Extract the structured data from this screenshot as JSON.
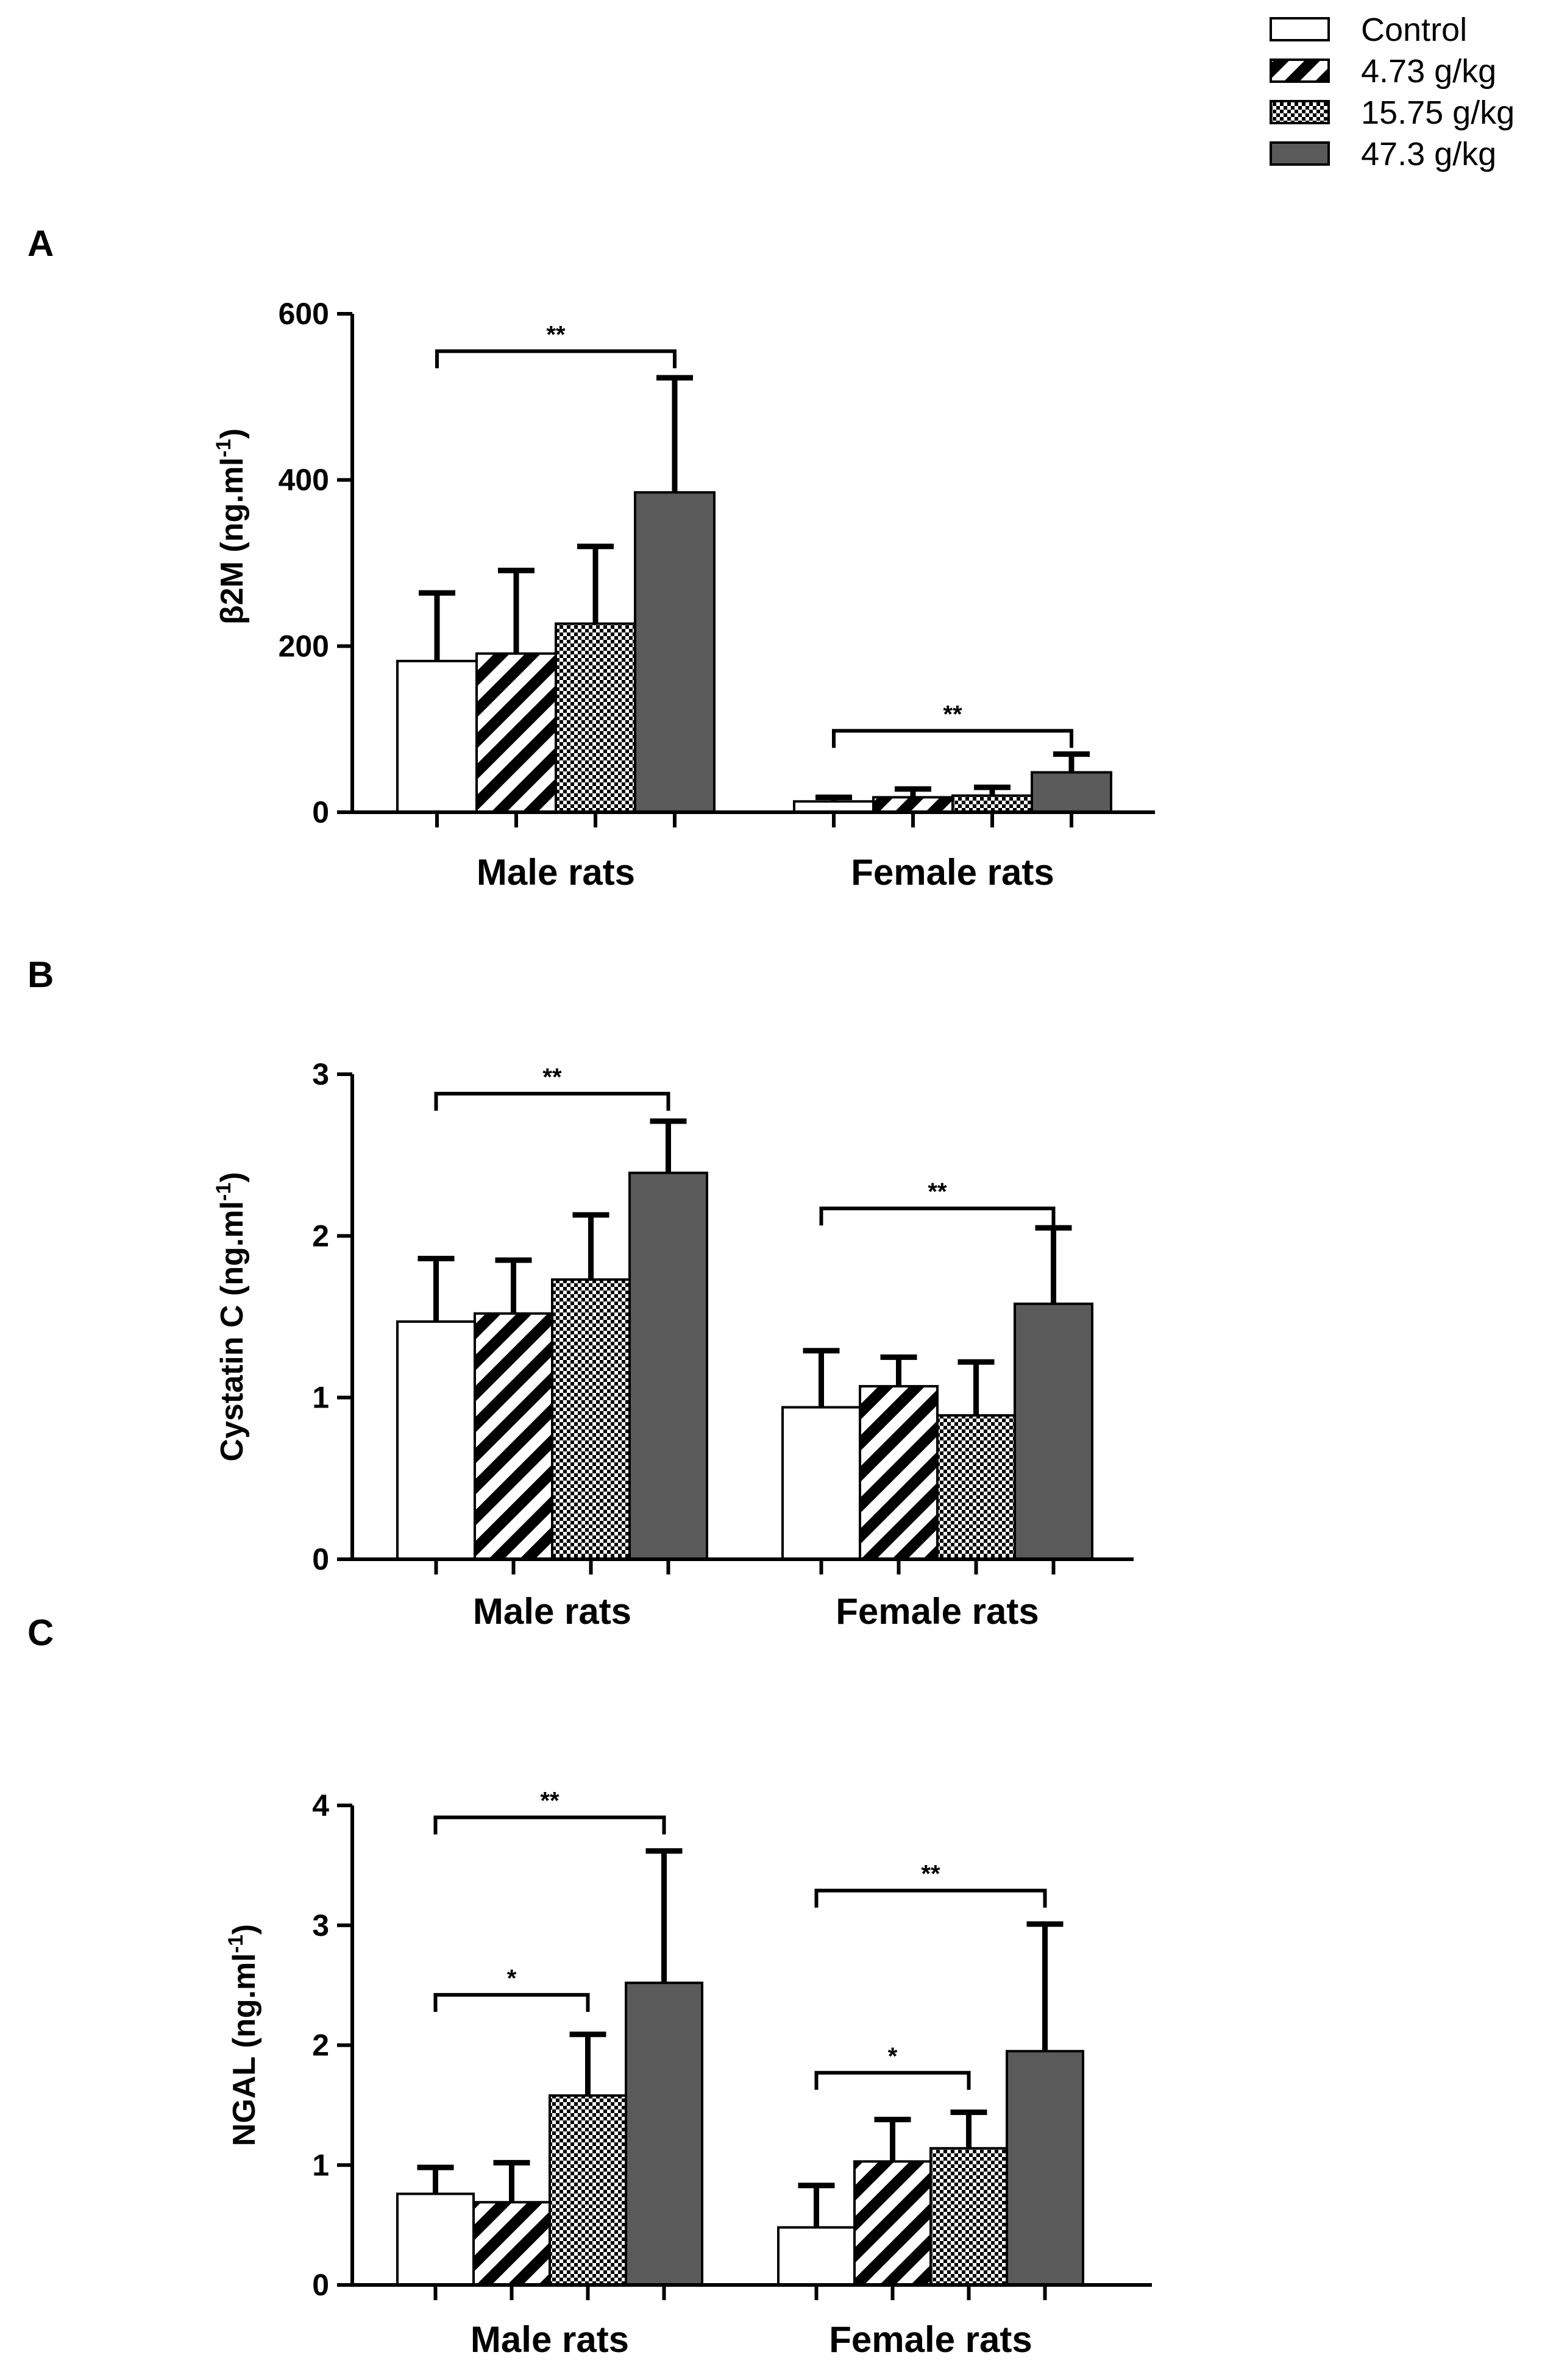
{
  "legend": [
    {
      "label": "Control",
      "pattern": "white"
    },
    {
      "label": "4.73 g/kg",
      "pattern": "stripes"
    },
    {
      "label": "15.75 g/kg",
      "pattern": "checks"
    },
    {
      "label": "47.3 g/kg",
      "pattern": "solid"
    }
  ],
  "colors": {
    "solid_bar": "#5a5a5a",
    "axis": "#000000",
    "background": "#ffffff"
  },
  "chart_data": [
    {
      "panel": "A",
      "type": "bar",
      "ylabel_main": "β2M (ng.ml",
      "ylabel_sup": "-1",
      "ylabel_close": ")",
      "ylim": [
        0,
        600
      ],
      "ticks": [
        0,
        200,
        400,
        600
      ],
      "categories": [
        "Male rats",
        "Female rats"
      ],
      "series": [
        {
          "name": "Control",
          "values": [
            182,
            13
          ],
          "errors": [
            82,
            5
          ]
        },
        {
          "name": "4.73 g/kg",
          "values": [
            191,
            18
          ],
          "errors": [
            100,
            10
          ]
        },
        {
          "name": "15.75 g/kg",
          "values": [
            227,
            20
          ],
          "errors": [
            93,
            10
          ]
        },
        {
          "name": "47.3 g/kg",
          "values": [
            385,
            48
          ],
          "errors": [
            138,
            22
          ]
        }
      ],
      "significance": [
        {
          "category": 0,
          "from": 0,
          "to": 3,
          "label": "**",
          "level": 555
        },
        {
          "category": 1,
          "from": 0,
          "to": 3,
          "label": "**",
          "level": 98
        }
      ]
    },
    {
      "panel": "B",
      "type": "bar",
      "ylabel_main": "Cystatin C (ng.ml",
      "ylabel_sup": "-1",
      "ylabel_close": ")",
      "ylim": [
        0,
        3
      ],
      "ticks": [
        0,
        1,
        2,
        3
      ],
      "categories": [
        "Male rats",
        "Female rats"
      ],
      "series": [
        {
          "name": "Control",
          "values": [
            1.47,
            0.94
          ],
          "errors": [
            0.39,
            0.35
          ]
        },
        {
          "name": "4.73 g/kg",
          "values": [
            1.52,
            1.07
          ],
          "errors": [
            0.33,
            0.18
          ]
        },
        {
          "name": "15.75 g/kg",
          "values": [
            1.73,
            0.89
          ],
          "errors": [
            0.4,
            0.33
          ]
        },
        {
          "name": "47.3 g/kg",
          "values": [
            2.39,
            1.58
          ],
          "errors": [
            0.32,
            0.47
          ]
        }
      ],
      "significance": [
        {
          "category": 0,
          "from": 0,
          "to": 3,
          "label": "**",
          "level": 2.88
        },
        {
          "category": 1,
          "from": 0,
          "to": 3,
          "label": "**",
          "level": 2.17
        }
      ]
    },
    {
      "panel": "C",
      "type": "bar",
      "ylabel_main": "NGAL (ng.ml",
      "ylabel_sup": "-1",
      "ylabel_close": ")",
      "ylim": [
        0,
        4
      ],
      "ticks": [
        0,
        1,
        2,
        3,
        4
      ],
      "categories": [
        "Male rats",
        "Female rats"
      ],
      "series": [
        {
          "name": "Control",
          "values": [
            0.76,
            0.48
          ],
          "errors": [
            0.22,
            0.35
          ]
        },
        {
          "name": "4.73 g/kg",
          "values": [
            0.69,
            1.03
          ],
          "errors": [
            0.33,
            0.35
          ]
        },
        {
          "name": "15.75 g/kg",
          "values": [
            1.58,
            1.14
          ],
          "errors": [
            0.51,
            0.3
          ]
        },
        {
          "name": "47.3 g/kg",
          "values": [
            2.52,
            1.95
          ],
          "errors": [
            1.1,
            1.06
          ]
        }
      ],
      "significance": [
        {
          "category": 0,
          "from": 0,
          "to": 3,
          "label": "**",
          "level": 3.9
        },
        {
          "category": 0,
          "from": 0,
          "to": 2,
          "label": "*",
          "level": 2.42
        },
        {
          "category": 1,
          "from": 0,
          "to": 3,
          "label": "**",
          "level": 3.29
        },
        {
          "category": 1,
          "from": 0,
          "to": 2,
          "label": "*",
          "level": 1.77
        }
      ]
    }
  ]
}
